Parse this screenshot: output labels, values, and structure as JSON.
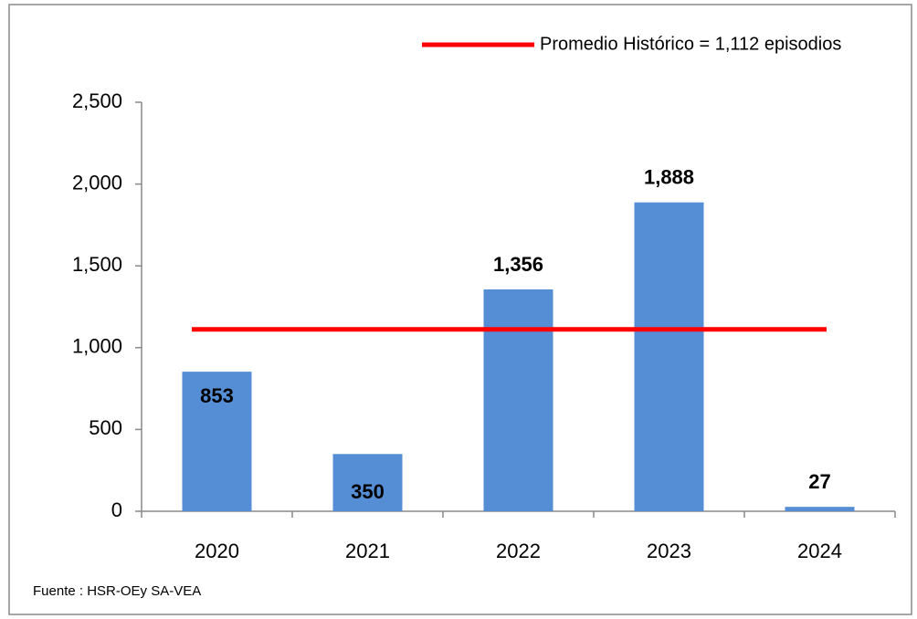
{
  "chart_data": {
    "type": "bar",
    "categories": [
      "2020",
      "2021",
      "2022",
      "2023",
      "2024"
    ],
    "values": [
      853,
      350,
      1356,
      1888,
      27
    ],
    "value_labels": [
      "853",
      "350",
      "1,356",
      "1,888",
      "27"
    ],
    "color": "#558ed5",
    "ylim": [
      0,
      2500
    ],
    "yticks": [
      0,
      500,
      {
        "value": 1000,
        "label": "1,000"
      },
      {
        "value": 1500,
        "label": "1,500"
      },
      {
        "value": 2000,
        "label": "2,000"
      },
      {
        "value": 2500,
        "label": "2,500"
      }
    ],
    "reference_line": {
      "name": "Promedio Histórico = 1,112 episodios",
      "value": 1112,
      "color": "#ff0000"
    },
    "source": "Fuente : HSR-OEy SA-VEA"
  }
}
